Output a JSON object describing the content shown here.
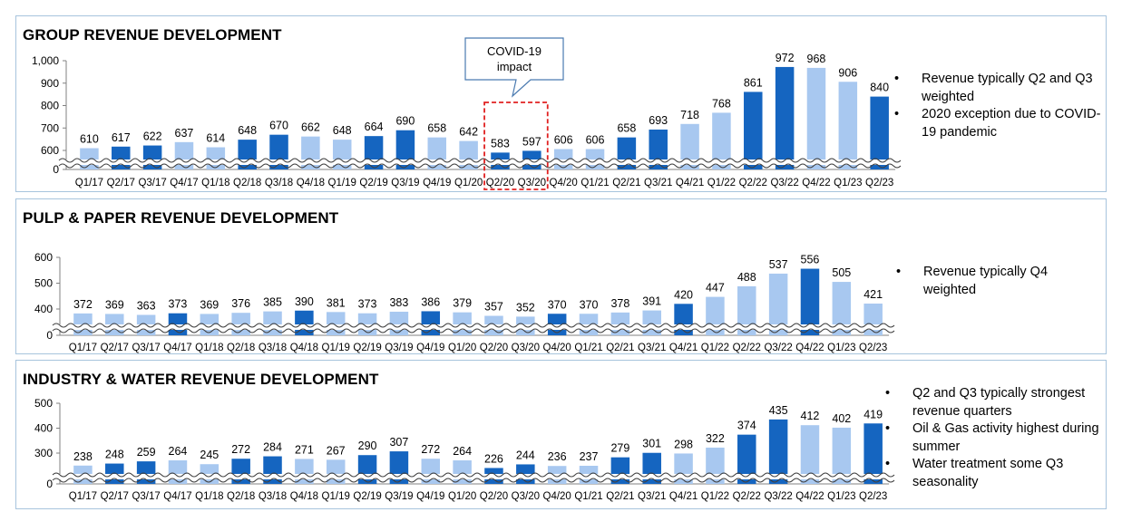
{
  "chart_data": [
    {
      "type": "bar",
      "title": "GROUP REVENUE DEVELOPMENT",
      "categories": [
        "Q1/17",
        "Q2/17",
        "Q3/17",
        "Q4/17",
        "Q1/18",
        "Q2/18",
        "Q3/18",
        "Q4/18",
        "Q1/19",
        "Q2/19",
        "Q3/19",
        "Q4/19",
        "Q1/20",
        "Q2/20",
        "Q3/20",
        "Q4/20",
        "Q1/21",
        "Q2/21",
        "Q3/21",
        "Q4/21",
        "Q1/22",
        "Q2/22",
        "Q3/22",
        "Q4/22",
        "Q1/23",
        "Q2/23"
      ],
      "values": [
        610,
        617,
        622,
        637,
        614,
        648,
        670,
        662,
        648,
        664,
        690,
        658,
        642,
        583,
        597,
        606,
        606,
        658,
        693,
        718,
        768,
        861,
        972,
        968,
        906,
        840
      ],
      "bar_colors": [
        "light",
        "dark",
        "dark",
        "light",
        "light",
        "dark",
        "dark",
        "light",
        "light",
        "dark",
        "dark",
        "light",
        "light",
        "dark",
        "dark",
        "light",
        "light",
        "dark",
        "dark",
        "light",
        "light",
        "dark",
        "dark",
        "light",
        "light",
        "dark"
      ],
      "yticks": [
        "0",
        "600",
        "700",
        "800",
        "900",
        "1,000"
      ],
      "ytick_values": [
        0,
        600,
        700,
        800,
        900,
        1000
      ],
      "axis_break": true,
      "ylim": [
        550,
        1000
      ],
      "grid": false,
      "legend": "none",
      "annotation": {
        "text_lines": [
          "COVID-19",
          "impact"
        ],
        "highlight_categories": [
          "Q2/20",
          "Q3/20"
        ]
      },
      "bullets": [
        "Revenue typically Q2 and Q3 weighted",
        "2020 exception due to COVID-19 pandemic"
      ]
    },
    {
      "type": "bar",
      "title": "PULP & PAPER REVENUE DEVELOPMENT",
      "categories": [
        "Q1/17",
        "Q2/17",
        "Q3/17",
        "Q4/17",
        "Q1/18",
        "Q2/18",
        "Q3/18",
        "Q4/18",
        "Q1/19",
        "Q2/19",
        "Q3/19",
        "Q4/19",
        "Q1/20",
        "Q2/20",
        "Q3/20",
        "Q4/20",
        "Q1/21",
        "Q2/21",
        "Q3/21",
        "Q4/21",
        "Q1/22",
        "Q2/22",
        "Q3/22",
        "Q4/22",
        "Q1/23",
        "Q2/23"
      ],
      "values": [
        372,
        369,
        363,
        373,
        369,
        376,
        385,
        390,
        381,
        373,
        383,
        386,
        379,
        357,
        352,
        370,
        370,
        378,
        391,
        420,
        447,
        488,
        537,
        556,
        505,
        421
      ],
      "bar_colors": [
        "light",
        "light",
        "light",
        "dark",
        "light",
        "light",
        "light",
        "dark",
        "light",
        "light",
        "light",
        "dark",
        "light",
        "light",
        "light",
        "dark",
        "light",
        "light",
        "light",
        "dark",
        "light",
        "light",
        "light",
        "dark",
        "light",
        "light"
      ],
      "yticks": [
        "0",
        "400",
        "500",
        "600"
      ],
      "ytick_values": [
        0,
        400,
        500,
        600
      ],
      "axis_break": true,
      "ylim": [
        320,
        600
      ],
      "grid": false,
      "legend": "none",
      "bullets": [
        "Revenue typically Q4 weighted"
      ]
    },
    {
      "type": "bar",
      "title": "INDUSTRY & WATER REVENUE DEVELOPMENT",
      "categories": [
        "Q1/17",
        "Q2/17",
        "Q3/17",
        "Q4/17",
        "Q1/18",
        "Q2/18",
        "Q3/18",
        "Q4/18",
        "Q1/19",
        "Q2/19",
        "Q3/19",
        "Q4/19",
        "Q1/20",
        "Q2/20",
        "Q3/20",
        "Q4/20",
        "Q1/21",
        "Q2/21",
        "Q3/21",
        "Q4/21",
        "Q1/22",
        "Q2/22",
        "Q3/22",
        "Q4/22",
        "Q1/23",
        "Q2/23"
      ],
      "values": [
        238,
        248,
        259,
        264,
        245,
        272,
        284,
        271,
        267,
        290,
        307,
        272,
        264,
        226,
        244,
        236,
        237,
        279,
        301,
        298,
        322,
        374,
        435,
        412,
        402,
        419
      ],
      "bar_colors": [
        "light",
        "dark",
        "dark",
        "light",
        "light",
        "dark",
        "dark",
        "light",
        "light",
        "dark",
        "dark",
        "light",
        "light",
        "dark",
        "dark",
        "light",
        "light",
        "dark",
        "dark",
        "light",
        "light",
        "dark",
        "dark",
        "light",
        "light",
        "dark"
      ],
      "yticks": [
        "0",
        "300",
        "400",
        "500"
      ],
      "ytick_values": [
        0,
        300,
        400,
        500
      ],
      "axis_break": true,
      "ylim": [
        210,
        500
      ],
      "grid": false,
      "legend": "none",
      "bullets": [
        "Q2 and Q3 typically strongest revenue quarters",
        "Oil & Gas activity highest during summer",
        "Water treatment some Q3 seasonality"
      ]
    }
  ],
  "colors": {
    "dark": "#1565c0",
    "light": "#a8c8f0",
    "border": "#a7c4dd",
    "highlight": "#e02020",
    "callout_border": "#4a7ab0"
  }
}
